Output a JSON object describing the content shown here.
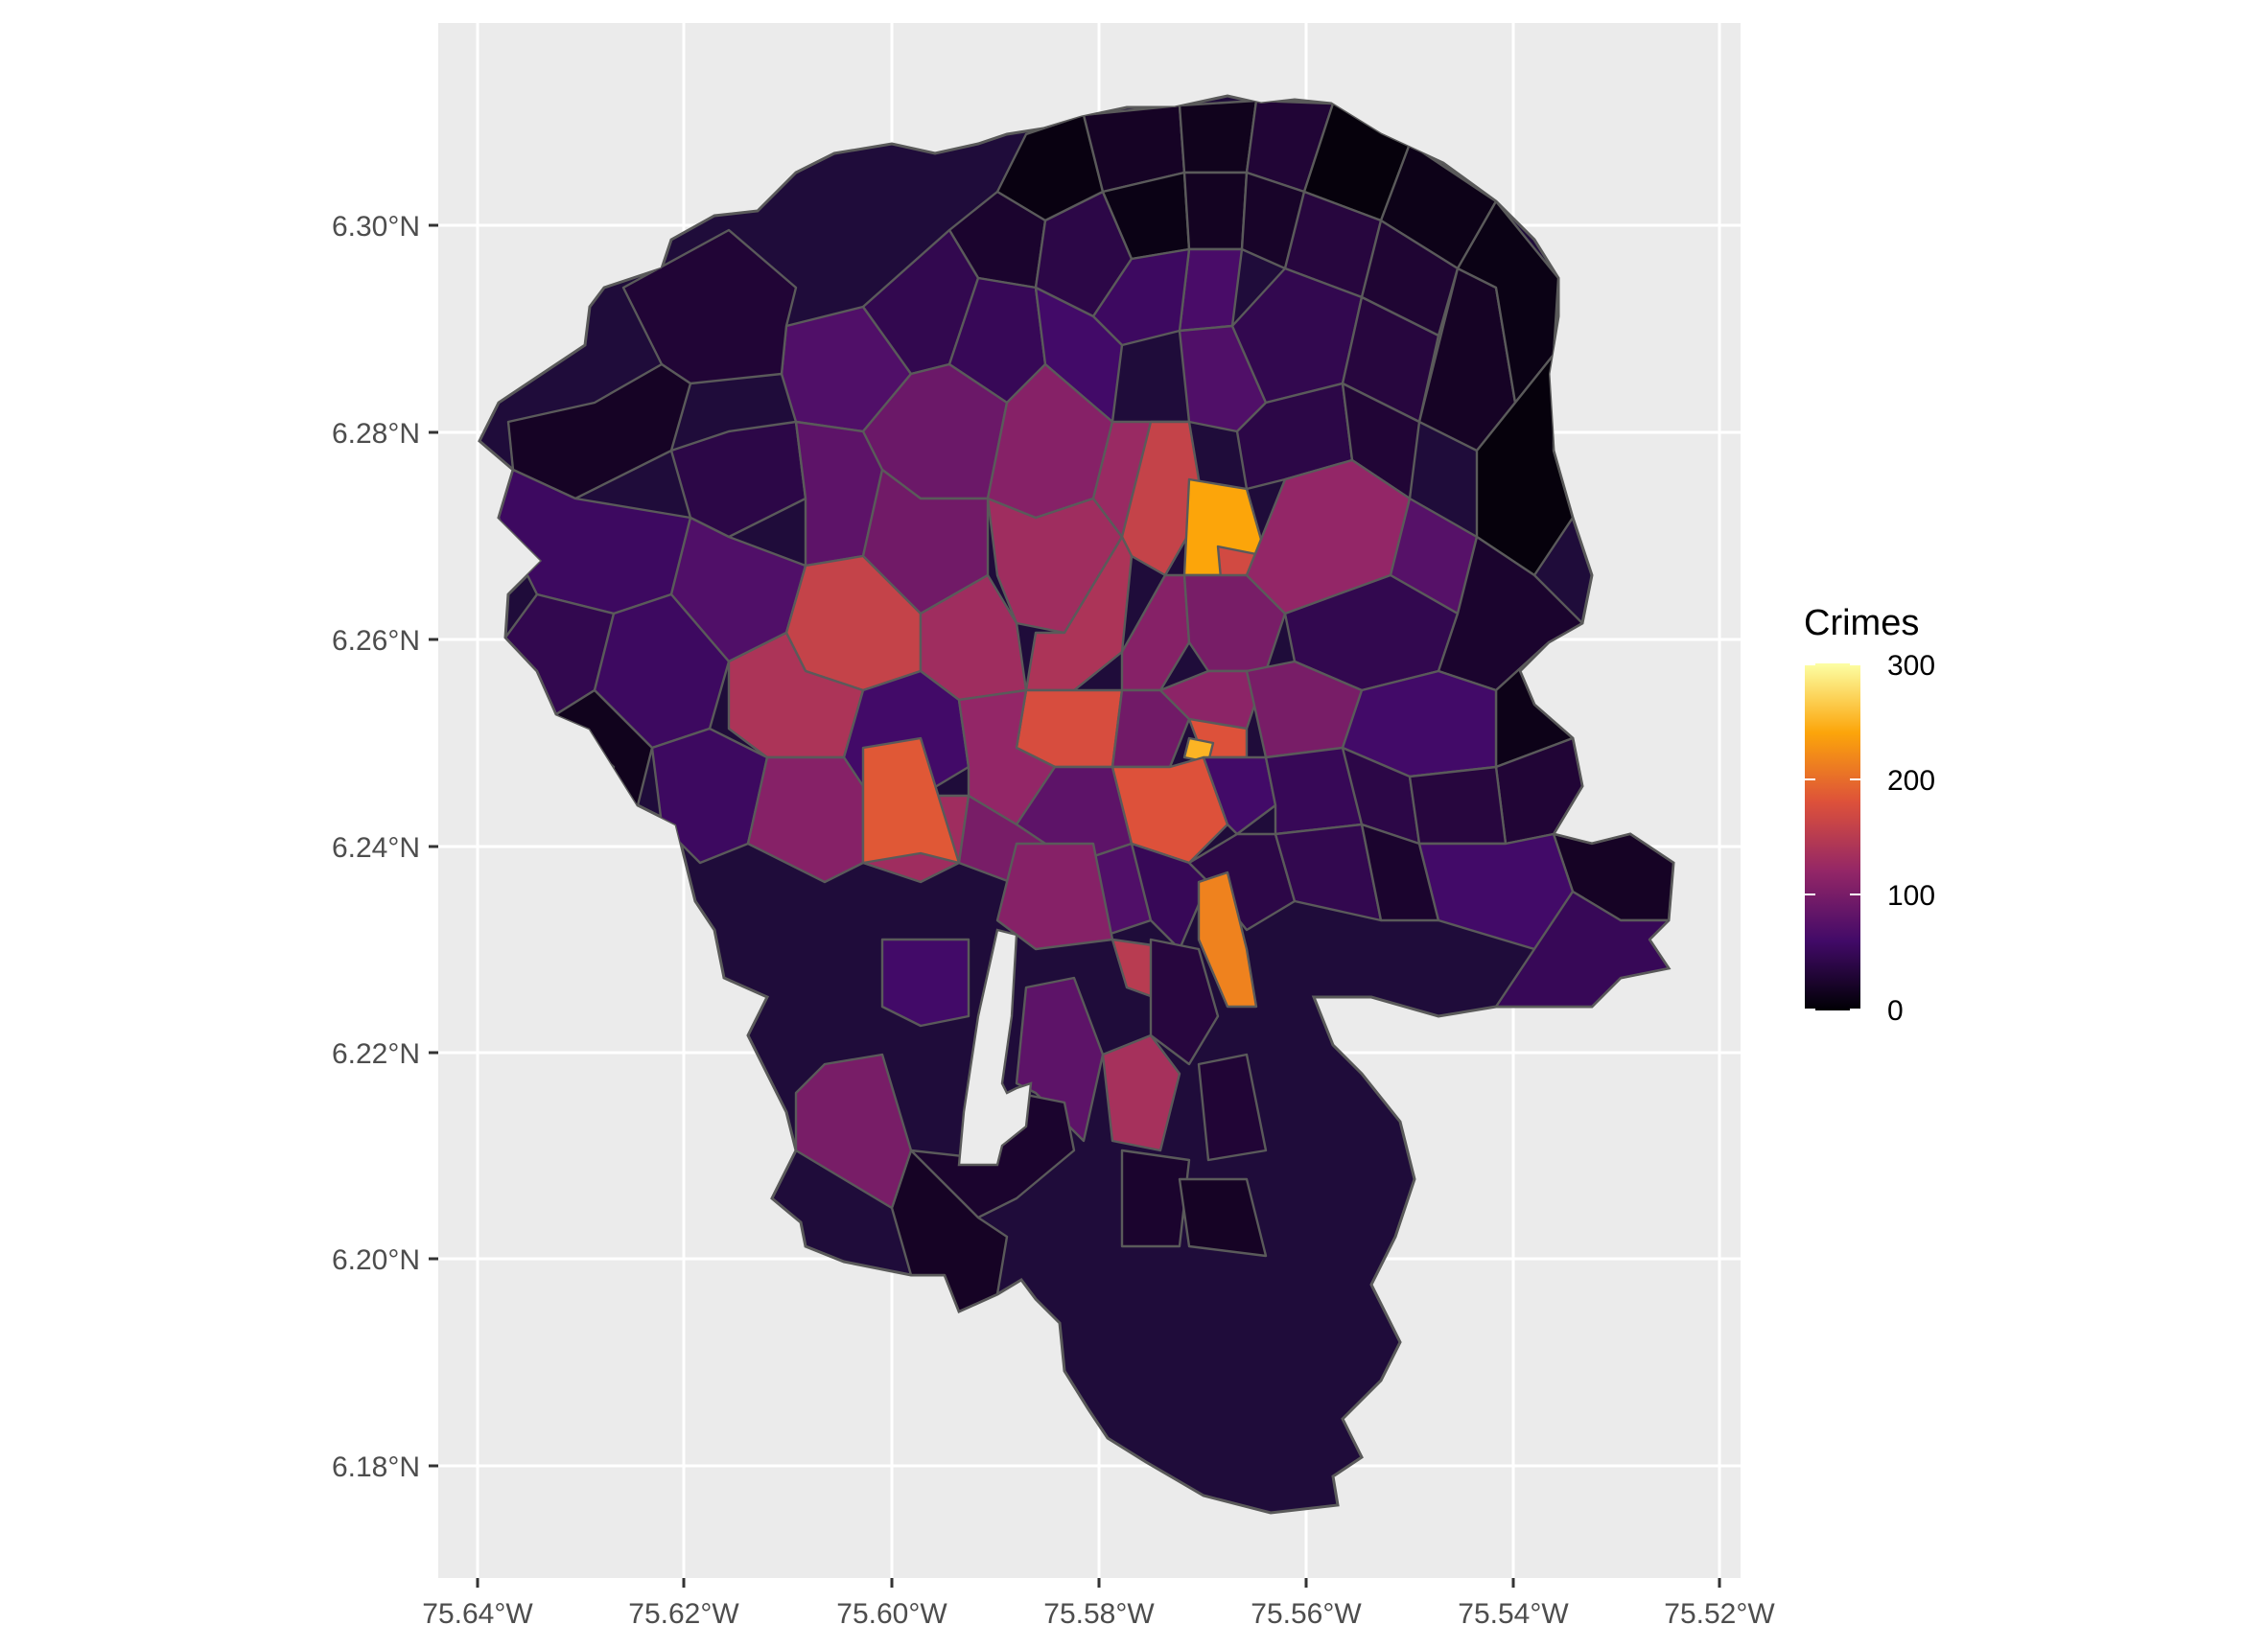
{
  "map": {
    "legend": {
      "title": "Crimes",
      "labels": [
        "300",
        "200",
        "100",
        "0"
      ],
      "min": 0,
      "max": 300
    },
    "axes": {
      "x_ticks": [
        "75.64°W",
        "75.62°W",
        "75.60°W",
        "75.58°W",
        "75.56°W",
        "75.54°W",
        "75.52°W"
      ],
      "y_ticks": [
        "6.30°N",
        "6.28°N",
        "6.26°N",
        "6.24°N",
        "6.22°N",
        "6.20°N",
        "6.18°N"
      ]
    },
    "colors": {
      "panel_background": "#ebebeb",
      "gridline": "#ffffff",
      "region_border": "#5a5a5a",
      "scale": [
        "#000004",
        "#420a68",
        "#932667",
        "#dd513a",
        "#fca50a",
        "#fcffa4"
      ]
    },
    "regions": [
      {
        "crimes": 8
      },
      {
        "crimes": 20
      },
      {
        "crimes": 15
      },
      {
        "crimes": 30
      },
      {
        "crimes": 5
      },
      {
        "crimes": 12
      },
      {
        "crimes": 25
      },
      {
        "crimes": 40
      },
      {
        "crimes": 10
      },
      {
        "crimes": 18
      },
      {
        "crimes": 22
      },
      {
        "crimes": 35
      },
      {
        "crimes": 28
      },
      {
        "crimes": 65
      },
      {
        "crimes": 55
      },
      {
        "crimes": 70
      },
      {
        "crimes": 45
      },
      {
        "crimes": 30
      },
      {
        "crimes": 20
      },
      {
        "crimes": 50
      },
      {
        "crimes": 60
      },
      {
        "crimes": 90
      },
      {
        "crimes": 110
      },
      {
        "crimes": 125
      },
      {
        "crimes": 70
      },
      {
        "crimes": 45
      },
      {
        "crimes": 35
      },
      {
        "crimes": 160
      },
      {
        "crimes": 240
      },
      {
        "crimes": 170
      },
      {
        "crimes": 40
      },
      {
        "crimes": 30
      },
      {
        "crimes": 20
      },
      {
        "crimes": 10
      },
      {
        "crimes": 5
      },
      {
        "crimes": 40
      },
      {
        "crimes": 80
      },
      {
        "crimes": 95
      },
      {
        "crimes": 130
      },
      {
        "crimes": 140
      },
      {
        "crimes": 110
      },
      {
        "crimes": 100
      },
      {
        "crimes": 120
      },
      {
        "crimes": 75
      },
      {
        "crimes": 45
      },
      {
        "crimes": 25
      },
      {
        "crimes": 12
      },
      {
        "crimes": 55
      },
      {
        "crimes": 70
      },
      {
        "crimes": 160
      },
      {
        "crimes": 130
      },
      {
        "crimes": 175
      },
      {
        "crimes": 95
      },
      {
        "crimes": 115
      },
      {
        "crimes": 180
      },
      {
        "crimes": 250
      },
      {
        "crimes": 100
      },
      {
        "crimes": 60
      },
      {
        "crimes": 30
      },
      {
        "crimes": 20
      },
      {
        "crimes": 45
      },
      {
        "crimes": 55
      },
      {
        "crimes": 140
      },
      {
        "crimes": 60
      },
      {
        "crimes": 120
      },
      {
        "crimes": 80
      },
      {
        "crimes": 180
      },
      {
        "crimes": 60
      },
      {
        "crimes": 50
      },
      {
        "crimes": 40
      },
      {
        "crimes": 35
      },
      {
        "crimes": 15
      },
      {
        "crimes": 55
      },
      {
        "crimes": 110
      },
      {
        "crimes": 130
      },
      {
        "crimes": 100
      },
      {
        "crimes": 185
      },
      {
        "crimes": 70
      },
      {
        "crimes": 50
      },
      {
        "crimes": 40
      },
      {
        "crimes": 45
      },
      {
        "crimes": 25
      },
      {
        "crimes": 215
      },
      {
        "crimes": 150
      },
      {
        "crimes": 110
      },
      {
        "crimes": 60
      },
      {
        "crimes": 50
      },
      {
        "crimes": 80
      },
      {
        "crimes": 25
      },
      {
        "crimes": 20
      },
      {
        "crimes": 100
      },
      {
        "crimes": 60
      },
      {
        "crimes": 135
      },
      {
        "crimes": 35
      },
      {
        "crimes": 30
      },
      {
        "crimes": 25
      },
      {
        "crimes": 20
      }
    ]
  }
}
